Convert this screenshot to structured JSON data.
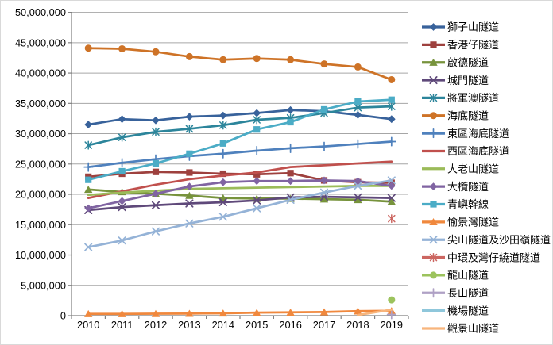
{
  "chart_data": {
    "type": "line",
    "title": "",
    "xlabel": "",
    "ylabel": "",
    "x": [
      "2010",
      "2011",
      "2012",
      "2013",
      "2014",
      "2015",
      "2016",
      "2017",
      "2018",
      "2019"
    ],
    "ylim": [
      0,
      50000000
    ],
    "ytick_step": 5000000,
    "y_tick_labels": [
      "0",
      "5,000,000",
      "10,000,000",
      "15,000,000",
      "20,000,000",
      "25,000,000",
      "30,000,000",
      "35,000,000",
      "40,000,000",
      "45,000,000",
      "50,000,000"
    ],
    "grid": true,
    "legend_position": "right",
    "axis_color": "#808080",
    "gridline_color": "#a6a6a6",
    "series": [
      {
        "name": "獅子山隧道",
        "color": "#38629b",
        "marker": "diamond",
        "values": [
          31500000,
          32400000,
          32200000,
          32800000,
          33000000,
          33400000,
          33900000,
          33700000,
          33100000,
          32400000
        ]
      },
      {
        "name": "香港仔隧道",
        "color": "#9e413e",
        "marker": "square",
        "values": [
          22900000,
          23400000,
          23700000,
          23600000,
          23400000,
          23300000,
          23500000,
          22300000,
          22000000,
          21900000
        ]
      },
      {
        "name": "啟德隧道",
        "color": "#77933c",
        "marker": "triangle",
        "values": [
          20800000,
          20400000,
          20100000,
          19800000,
          19400000,
          19300000,
          19300000,
          19200000,
          19100000,
          18800000
        ]
      },
      {
        "name": "城門隧道",
        "color": "#5f497a",
        "marker": "x",
        "values": [
          17400000,
          17900000,
          18200000,
          18500000,
          18700000,
          19000000,
          19500000,
          19600000,
          19500000,
          19400000
        ]
      },
      {
        "name": "將軍澳隧道",
        "color": "#2c859b",
        "marker": "asterisk",
        "values": [
          28100000,
          29400000,
          30300000,
          30800000,
          31400000,
          32300000,
          32600000,
          33400000,
          34300000,
          34500000
        ]
      },
      {
        "name": "海底隧道",
        "color": "#ce7327",
        "marker": "circle",
        "values": [
          44100000,
          44000000,
          43500000,
          42700000,
          42200000,
          42400000,
          42200000,
          41500000,
          41000000,
          38900000
        ]
      },
      {
        "name": "東區海底隧道",
        "color": "#4f81bd",
        "marker": "plus",
        "values": [
          24500000,
          25200000,
          25800000,
          26300000,
          26700000,
          27200000,
          27600000,
          27900000,
          28300000,
          28700000
        ]
      },
      {
        "name": "西區海底隧道",
        "color": "#c0504d",
        "marker": "none",
        "values": [
          19400000,
          20500000,
          21600000,
          22500000,
          23100000,
          23600000,
          24500000,
          24800000,
          25100000,
          25400000
        ]
      },
      {
        "name": "大老山隧道",
        "color": "#9bbb59",
        "marker": "none",
        "values": [
          19900000,
          20300000,
          20600000,
          20900000,
          21000000,
          21100000,
          21200000,
          21300000,
          21400000,
          21400000
        ]
      },
      {
        "name": "大欖隧道",
        "color": "#8064a2",
        "marker": "diamond",
        "values": [
          17700000,
          18900000,
          20100000,
          21300000,
          22000000,
          22200000,
          22200000,
          22300000,
          22200000,
          21400000
        ]
      },
      {
        "name": "青嶼幹線",
        "color": "#4bacc6",
        "marker": "square",
        "values": [
          22400000,
          23800000,
          25100000,
          26700000,
          28400000,
          30700000,
          31900000,
          34000000,
          35300000,
          35600000
        ]
      },
      {
        "name": "愉景灣隧道",
        "color": "#f0883d",
        "marker": "triangle",
        "values": [
          300000,
          300000,
          320000,
          350000,
          400000,
          500000,
          550000,
          600000,
          750000,
          800000
        ]
      },
      {
        "name": "尖山隧道及沙田嶺隧道",
        "color": "#95b3d7",
        "marker": "x",
        "values": [
          11300000,
          12400000,
          13900000,
          15200000,
          16300000,
          17700000,
          19100000,
          20300000,
          21400000,
          22300000
        ]
      },
      {
        "name": "中環及灣仔繞道隧道",
        "color": "#cc6661",
        "marker": "asterisk",
        "values": [
          null,
          null,
          null,
          null,
          null,
          null,
          null,
          null,
          null,
          16000000
        ]
      },
      {
        "name": "龍山隧道",
        "color": "#9cc35d",
        "marker": "circle",
        "values": [
          null,
          null,
          null,
          null,
          null,
          null,
          null,
          null,
          null,
          2600000
        ]
      },
      {
        "name": "長山隧道",
        "color": "#afa1c5",
        "marker": "plus",
        "values": [
          null,
          null,
          null,
          null,
          null,
          null,
          null,
          null,
          null,
          200000
        ]
      },
      {
        "name": "機場隧道",
        "color": "#8fc7db",
        "marker": "none",
        "values": [
          null,
          null,
          null,
          null,
          null,
          null,
          null,
          null,
          null,
          400000
        ]
      },
      {
        "name": "觀景山隧道",
        "color": "#f8b57c",
        "marker": "none",
        "values": [
          null,
          null,
          null,
          null,
          null,
          null,
          null,
          null,
          100000,
          1000000
        ]
      }
    ]
  }
}
